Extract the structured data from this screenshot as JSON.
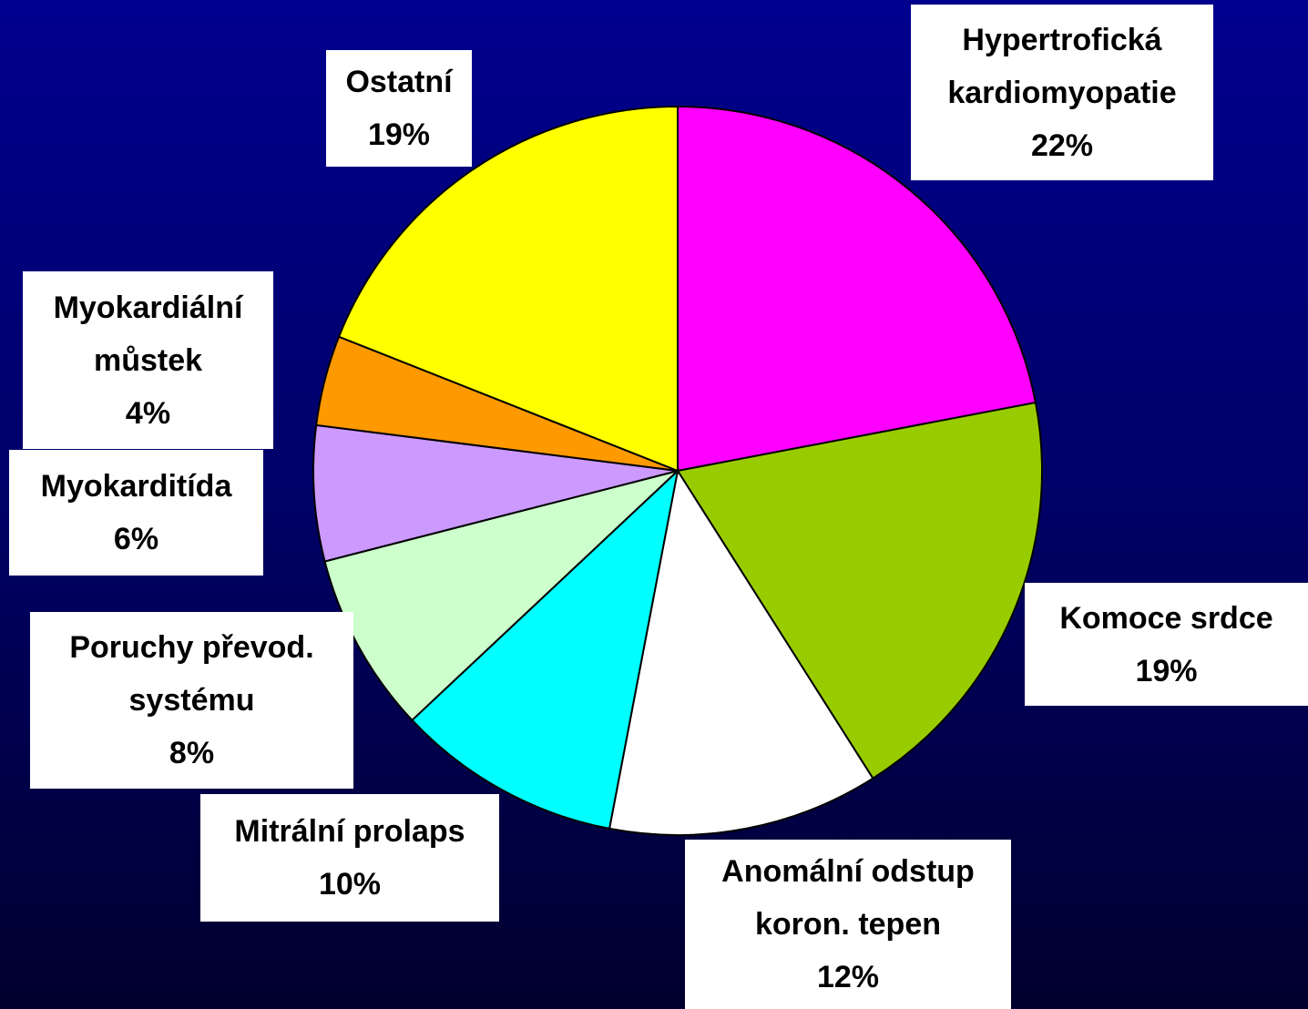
{
  "chart_data": {
    "type": "pie",
    "categories": [
      "Hypertrofická kardiomyopatie",
      "Komoce srdce",
      "Anomální odstup koron. tepen",
      "Mitrální prolaps",
      "Poruchy převod. systému",
      "Myokarditída",
      "Myokardiální můstek",
      "Ostatní"
    ],
    "values": [
      22,
      19,
      12,
      10,
      8,
      6,
      4,
      19
    ],
    "value_labels": [
      "22%",
      "19%",
      "12%",
      "10%",
      "8%",
      "6%",
      "4%",
      "19%"
    ],
    "colors": [
      "#ff00ff",
      "#99cc00",
      "#ffffff",
      "#00ffff",
      "#ccffcc",
      "#cc99ff",
      "#ff9900",
      "#ffff00"
    ]
  }
}
